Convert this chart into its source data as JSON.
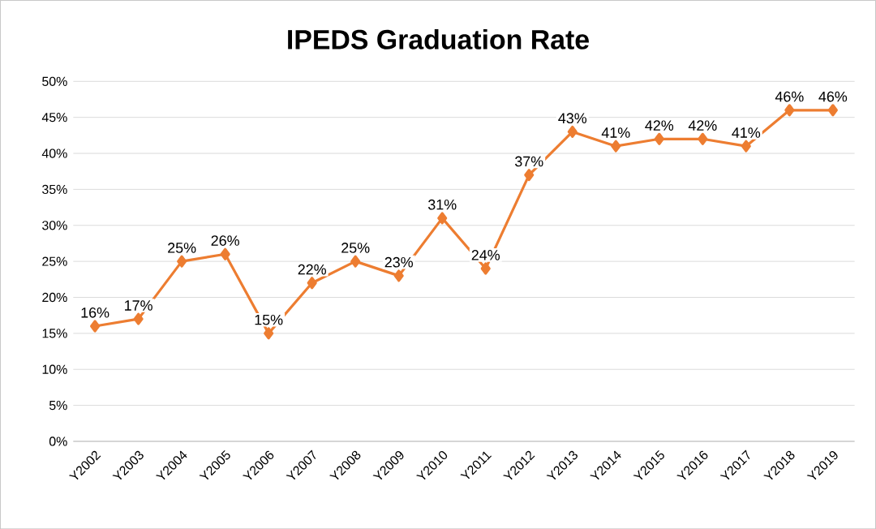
{
  "chart_data": {
    "type": "line",
    "title": "IPEDS Graduation Rate",
    "categories": [
      "Y2002",
      "Y2003",
      "Y2004",
      "Y2005",
      "Y2006",
      "Y2007",
      "Y2008",
      "Y2009",
      "Y2010",
      "Y2011",
      "Y2012",
      "Y2013",
      "Y2014",
      "Y2015",
      "Y2016",
      "Y2017",
      "Y2018",
      "Y2019"
    ],
    "series": [
      {
        "color": "#ed7d31",
        "values": [
          16,
          17,
          25,
          26,
          15,
          22,
          25,
          23,
          31,
          24,
          37,
          43,
          41,
          42,
          42,
          41,
          46,
          46
        ],
        "value_labels": [
          "16%",
          "17%",
          "25%",
          "26%",
          "15%",
          "22%",
          "25%",
          "23%",
          "31%",
          "24%",
          "37%",
          "43%",
          "41%",
          "42%",
          "42%",
          "41%",
          "46%",
          "46%"
        ]
      }
    ],
    "ylim": [
      0,
      50
    ],
    "yticks": [
      {
        "value": 0,
        "label": "0%"
      },
      {
        "value": 5,
        "label": "5%"
      },
      {
        "value": 10,
        "label": "10%"
      },
      {
        "value": 15,
        "label": "15%"
      },
      {
        "value": 20,
        "label": "20%"
      },
      {
        "value": 25,
        "label": "25%"
      },
      {
        "value": 30,
        "label": "30%"
      },
      {
        "value": 35,
        "label": "35%"
      },
      {
        "value": 40,
        "label": "40%"
      },
      {
        "value": 45,
        "label": "45%"
      },
      {
        "value": 50,
        "label": "50%"
      }
    ],
    "grid": "y",
    "marker": "diamond",
    "line_style": "solid"
  }
}
